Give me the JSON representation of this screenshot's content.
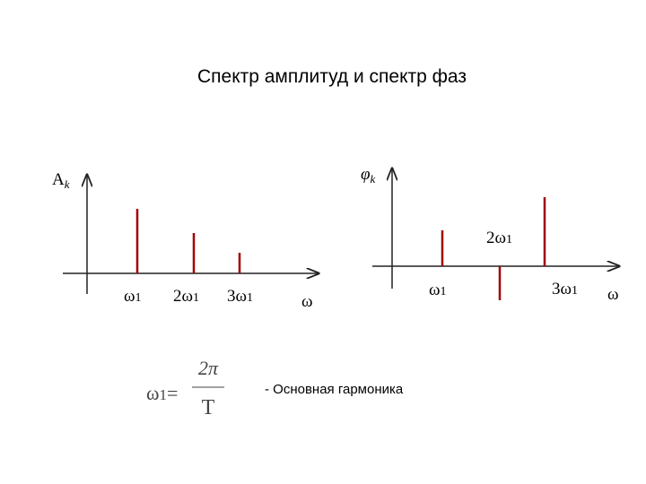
{
  "title": "Спектр амплитуд и спектр фаз",
  "amplitude_spectrum": {
    "axis_label": {
      "base": "A",
      "sub": "k"
    },
    "x_axis_label": "ω",
    "harmonic_labels": [
      {
        "base": "ω",
        "sub": "1"
      },
      {
        "base": "2ω",
        "sub": "1"
      },
      {
        "base": "3ω",
        "sub": "1"
      }
    ]
  },
  "phase_spectrum": {
    "axis_label": {
      "base": "φ",
      "sub": "k"
    },
    "x_axis_label": "ω",
    "harmonic_labels": [
      {
        "base": "ω",
        "sub": "1"
      },
      {
        "base": "2ω",
        "sub": "1"
      },
      {
        "base": "3ω",
        "sub": "1"
      }
    ]
  },
  "formula": {
    "lhs": {
      "base": "ω",
      "sub": "1"
    },
    "equals": "=",
    "numerator": "2π",
    "denominator": "T"
  },
  "caption": "- Основная гармоника"
}
